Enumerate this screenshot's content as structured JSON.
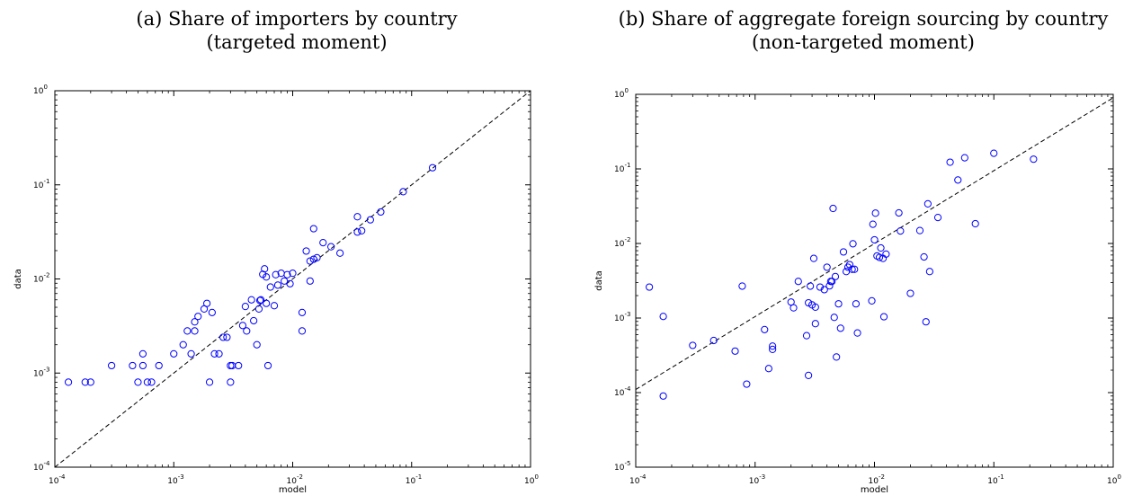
{
  "panels": [
    {
      "title_line1": "(a) Share of importers by country",
      "title_line2": "(targeted moment)"
    },
    {
      "title_line1": "(b) Share of aggregate foreign sourcing by country",
      "title_line2": "(non-targeted moment)"
    }
  ],
  "chart_data": [
    {
      "type": "scatter",
      "title": "(a) Share of importers by country (targeted moment)",
      "xlabel": "model",
      "ylabel": "data",
      "xscale": "log",
      "yscale": "log",
      "xlim": [
        0.0001,
        1
      ],
      "ylim": [
        0.0001,
        1
      ],
      "x_ticks": [
        [
          "10",
          "-4"
        ],
        [
          "10",
          "-3"
        ],
        [
          "10",
          "-2"
        ],
        [
          "10",
          "-1"
        ],
        [
          "10",
          "0"
        ]
      ],
      "y_ticks": [
        [
          "10",
          "-4"
        ],
        [
          "10",
          "-3"
        ],
        [
          "10",
          "-2"
        ],
        [
          "10",
          "-1"
        ],
        [
          "10",
          "0"
        ]
      ],
      "marker": "open circle",
      "marker_color": "#0000ff",
      "reference_line": {
        "style": "dashed",
        "color": "#000000",
        "from": [
          0.0001,
          0.0001
        ],
        "to": [
          1,
          1
        ]
      },
      "x": [
        0.00013,
        0.00018,
        0.0002,
        0.0003,
        0.00045,
        0.0005,
        0.00055,
        0.00055,
        0.0006,
        0.00065,
        0.00075,
        0.001,
        0.0012,
        0.0013,
        0.0014,
        0.0015,
        0.0015,
        0.0016,
        0.0018,
        0.0019,
        0.002,
        0.0021,
        0.0022,
        0.0024,
        0.0026,
        0.0028,
        0.003,
        0.003,
        0.0031,
        0.0035,
        0.0038,
        0.004,
        0.0041,
        0.0045,
        0.0047,
        0.005,
        0.0052,
        0.0053,
        0.0054,
        0.0056,
        0.0058,
        0.006,
        0.006,
        0.0062,
        0.0065,
        0.007,
        0.0072,
        0.0075,
        0.008,
        0.0085,
        0.009,
        0.0095,
        0.01,
        0.012,
        0.012,
        0.013,
        0.014,
        0.014,
        0.015,
        0.015,
        0.016,
        0.018,
        0.021,
        0.025,
        0.035,
        0.035,
        0.038,
        0.045,
        0.055,
        0.085,
        0.15
      ],
      "y": [
        0.0008,
        0.0008,
        0.0008,
        0.0012,
        0.0012,
        0.0008,
        0.0012,
        0.0016,
        0.0008,
        0.0008,
        0.0012,
        0.0016,
        0.002,
        0.0028,
        0.0016,
        0.0028,
        0.0035,
        0.004,
        0.0048,
        0.0055,
        0.0008,
        0.0044,
        0.0016,
        0.0016,
        0.0024,
        0.0024,
        0.0012,
        0.0008,
        0.0012,
        0.0012,
        0.0032,
        0.0051,
        0.0028,
        0.006,
        0.0036,
        0.002,
        0.0048,
        0.0059,
        0.006,
        0.0112,
        0.0128,
        0.0055,
        0.0105,
        0.0012,
        0.0082,
        0.0052,
        0.0111,
        0.0086,
        0.0115,
        0.0095,
        0.0111,
        0.0089,
        0.0115,
        0.0044,
        0.0028,
        0.0198,
        0.0095,
        0.0155,
        0.0342,
        0.0162,
        0.0168,
        0.0243,
        0.022,
        0.0188,
        0.0315,
        0.0458,
        0.0325,
        0.0425,
        0.0515,
        0.0845,
        0.152
      ]
    },
    {
      "type": "scatter",
      "title": "(b) Share of aggregate foreign sourcing by country (non-targeted moment)",
      "xlabel": "model",
      "ylabel": "data",
      "xscale": "log",
      "yscale": "log",
      "xlim": [
        0.0001,
        1
      ],
      "ylim": [
        1e-05,
        1
      ],
      "x_ticks": [
        [
          "10",
          "-4"
        ],
        [
          "10",
          "-3"
        ],
        [
          "10",
          "-2"
        ],
        [
          "10",
          "-1"
        ],
        [
          "10",
          "0"
        ]
      ],
      "y_ticks": [
        [
          "10",
          "-5"
        ],
        [
          "10",
          "-4"
        ],
        [
          "10",
          "-3"
        ],
        [
          "10",
          "-2"
        ],
        [
          "10",
          "-1"
        ],
        [
          "10",
          "0"
        ]
      ],
      "marker": "open circle",
      "marker_color": "#0000ff",
      "reference_line": {
        "style": "dashed",
        "color": "#000000",
        "from": [
          0.0001,
          0.00011
        ],
        "to": [
          1,
          0.9
        ]
      },
      "x": [
        0.00013,
        0.00017,
        0.00017,
        0.0003,
        0.00045,
        0.00068,
        0.00078,
        0.00085,
        0.0012,
        0.0013,
        0.0014,
        0.0014,
        0.002,
        0.0021,
        0.0023,
        0.0027,
        0.0028,
        0.0028,
        0.0029,
        0.003,
        0.0031,
        0.0032,
        0.0032,
        0.0035,
        0.0038,
        0.004,
        0.0042,
        0.0043,
        0.0044,
        0.0045,
        0.0046,
        0.0047,
        0.0048,
        0.005,
        0.0052,
        0.0055,
        0.0058,
        0.006,
        0.0062,
        0.0065,
        0.0066,
        0.0068,
        0.007,
        0.0072,
        0.0095,
        0.0097,
        0.01,
        0.0102,
        0.0105,
        0.011,
        0.0113,
        0.0118,
        0.012,
        0.0125,
        0.016,
        0.0165,
        0.02,
        0.024,
        0.026,
        0.027,
        0.028,
        0.029,
        0.034,
        0.043,
        0.05,
        0.057,
        0.07,
        0.1,
        0.215
      ],
      "y": [
        0.0026,
        9e-05,
        0.00105,
        0.00043,
        0.0005,
        0.00036,
        0.00268,
        0.00013,
        0.0007,
        0.00021,
        0.00038,
        0.00042,
        0.00164,
        0.00137,
        0.0031,
        0.00058,
        0.0016,
        0.00017,
        0.00268,
        0.0015,
        0.0063,
        0.0014,
        0.00084,
        0.0026,
        0.0024,
        0.0048,
        0.0027,
        0.0031,
        0.0031,
        0.0295,
        0.00102,
        0.0036,
        0.0003,
        0.00155,
        0.00073,
        0.0077,
        0.0042,
        0.0048,
        0.0052,
        0.0045,
        0.0099,
        0.0045,
        0.00155,
        0.00063,
        0.0017,
        0.0181,
        0.0112,
        0.0255,
        0.0068,
        0.0065,
        0.0087,
        0.0063,
        0.00104,
        0.0072,
        0.0257,
        0.0147,
        0.00214,
        0.0149,
        0.0066,
        0.00089,
        0.034,
        0.0042,
        0.0223,
        0.123,
        0.071,
        0.141,
        0.0184,
        0.162,
        0.135
      ]
    }
  ]
}
